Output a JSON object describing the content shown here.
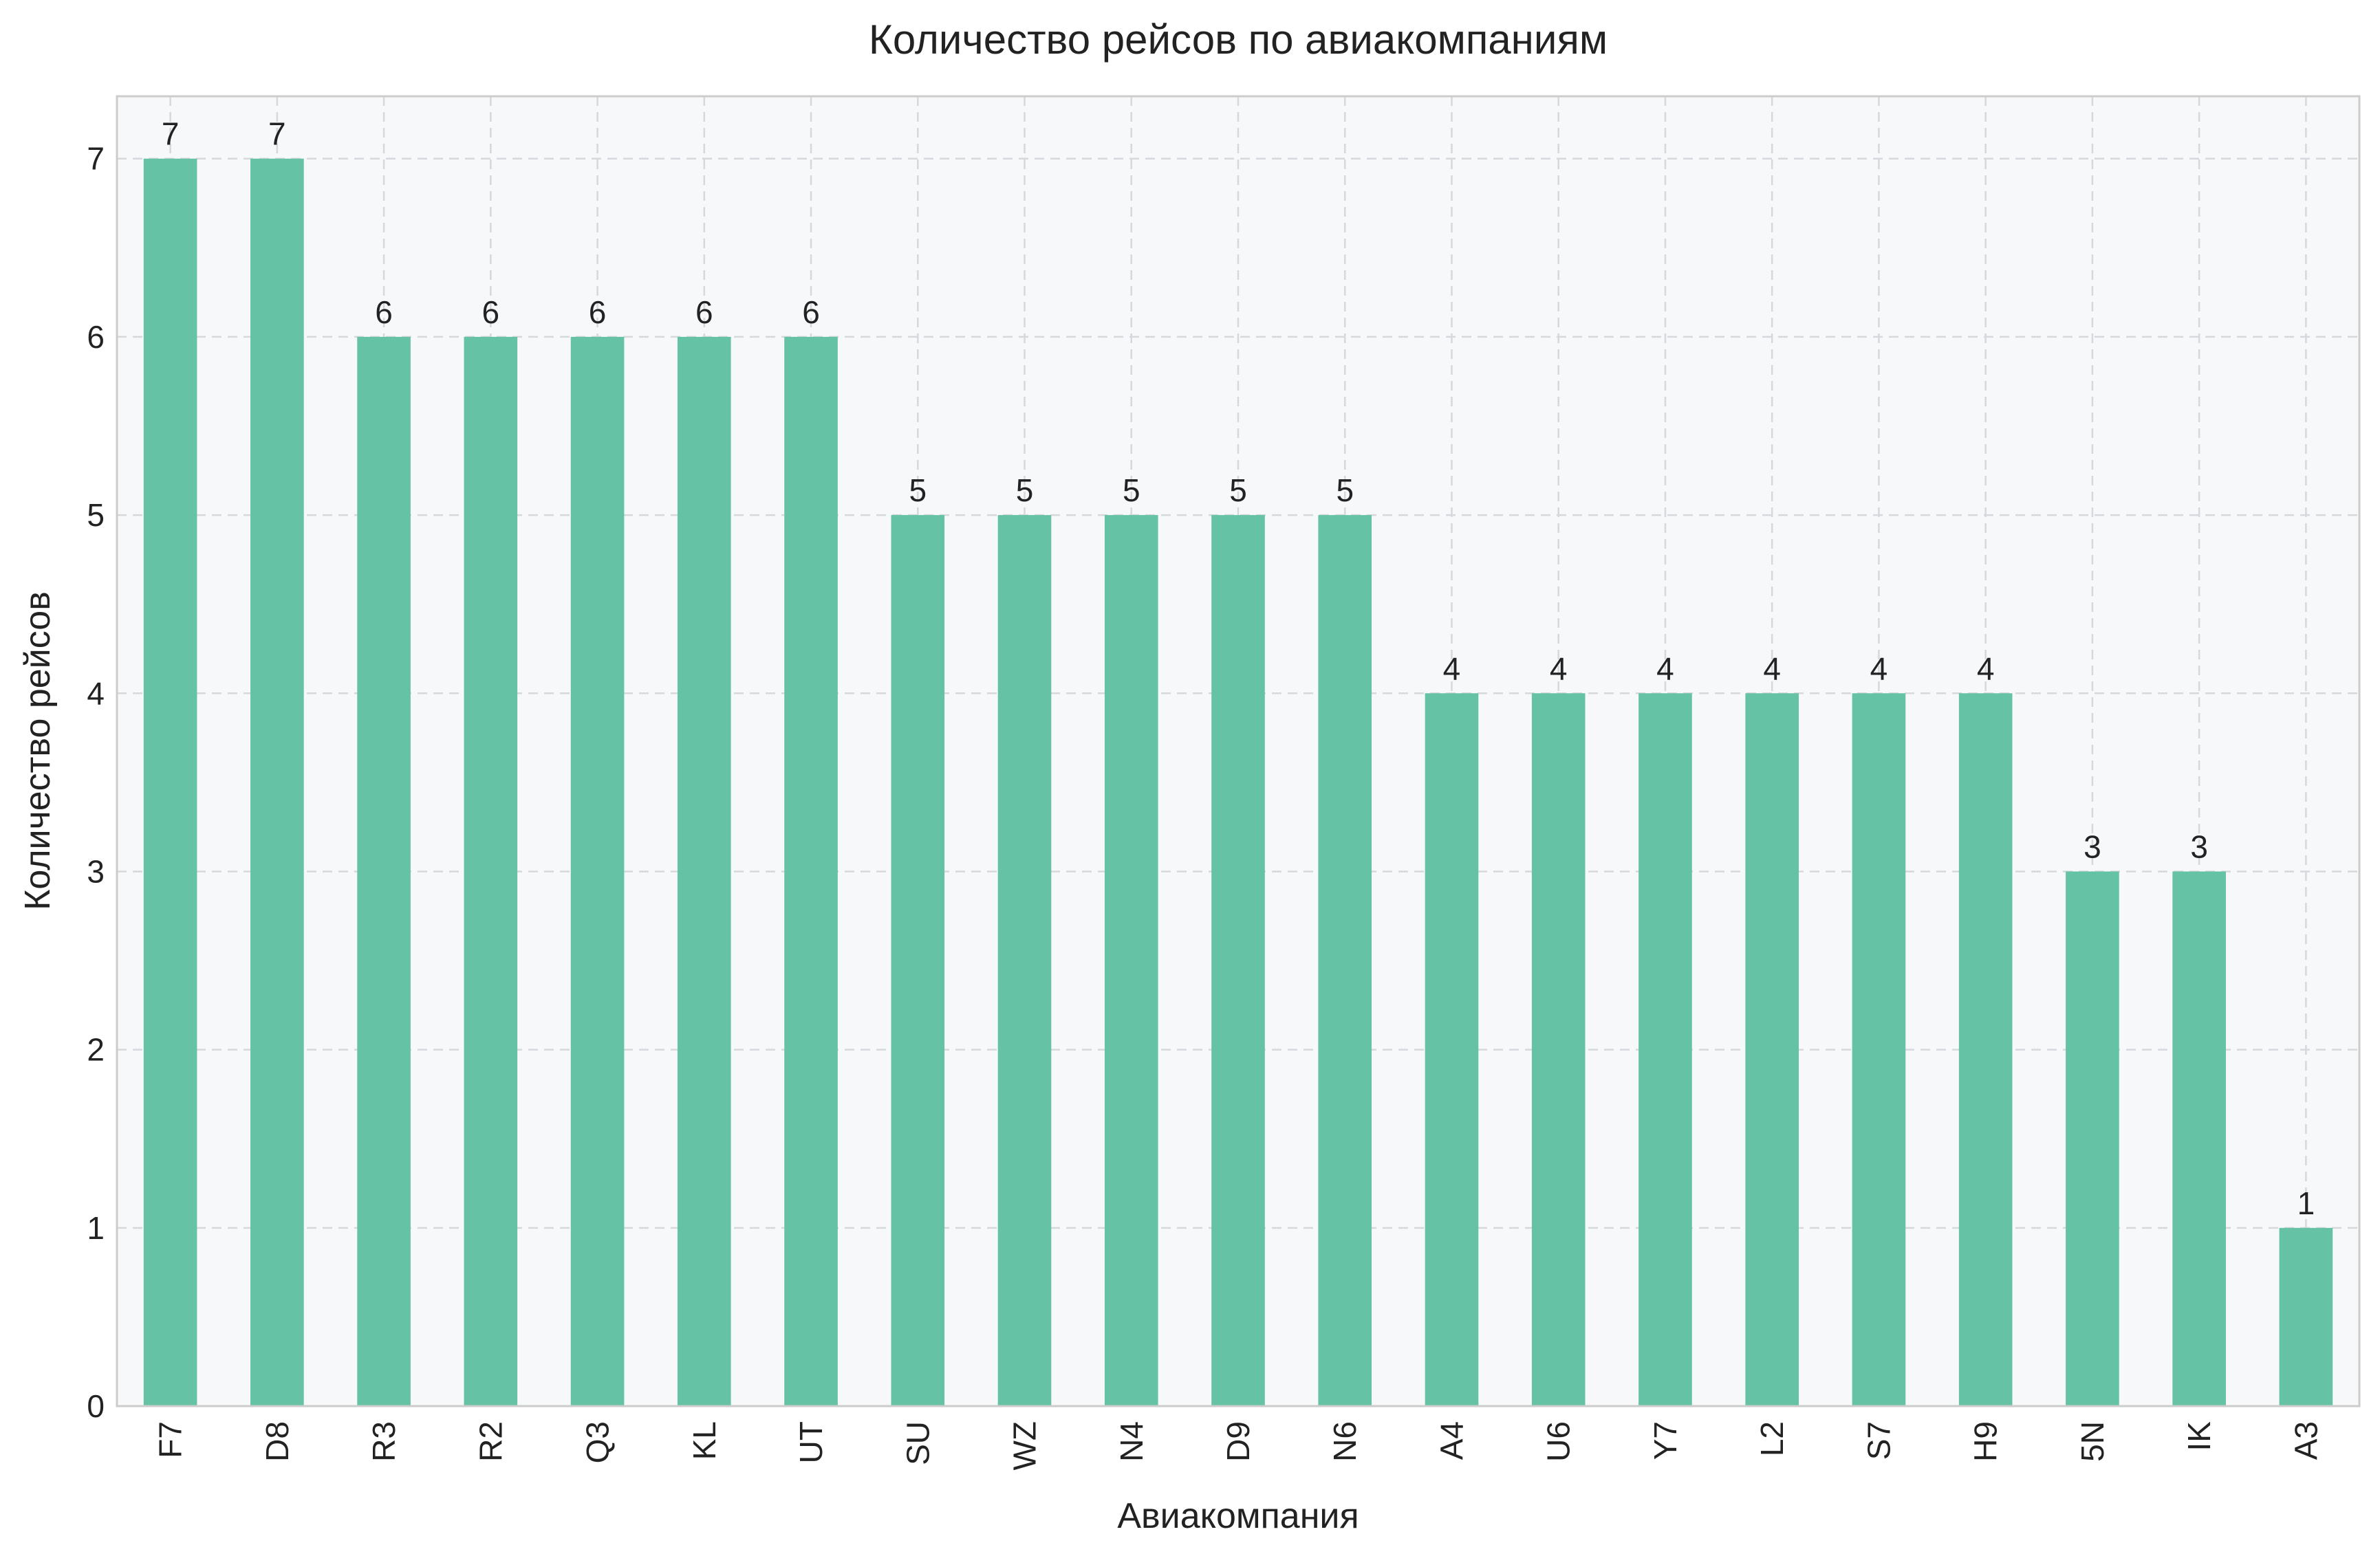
{
  "chart_data": {
    "type": "bar",
    "title": "Количество рейсов по авиакомпаниям",
    "xlabel": "Авиакомпания",
    "ylabel": "Количество рейсов",
    "categories": [
      "F7",
      "D8",
      "R3",
      "R2",
      "Q3",
      "KL",
      "UT",
      "SU",
      "WZ",
      "N4",
      "D9",
      "N6",
      "A4",
      "U6",
      "Y7",
      "L2",
      "S7",
      "H9",
      "5N",
      "IK",
      "A3"
    ],
    "values": [
      7,
      7,
      6,
      6,
      6,
      6,
      6,
      5,
      5,
      5,
      5,
      5,
      4,
      4,
      4,
      4,
      4,
      4,
      3,
      3,
      1
    ],
    "yticks": [
      0,
      1,
      2,
      3,
      4,
      5,
      6,
      7
    ],
    "ylim": [
      0,
      7.35
    ],
    "grid": true,
    "data_labels": true,
    "colors": {
      "bar": "#66c2a5",
      "plot_background": "#f7f8fa",
      "grid": "#d5d8dc",
      "frame": "#cccccc"
    }
  }
}
